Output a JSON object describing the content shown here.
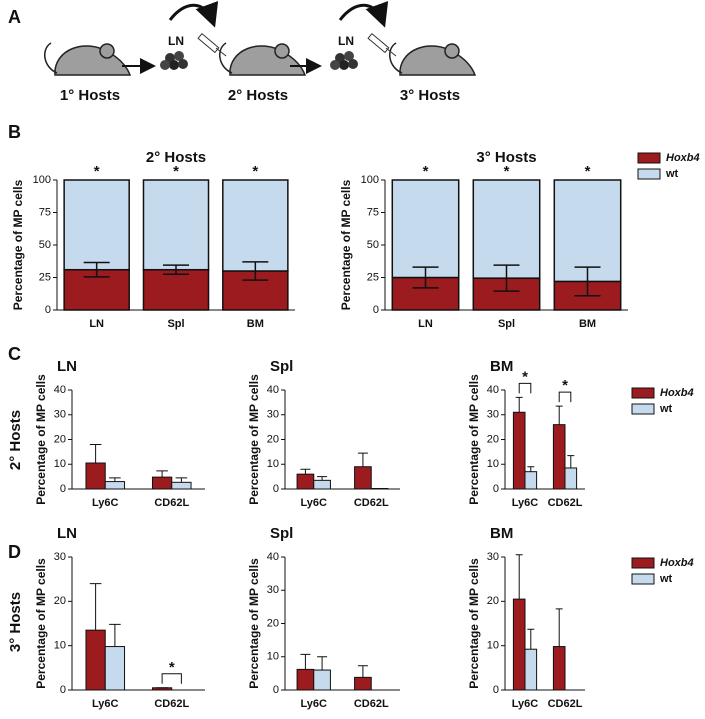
{
  "panel_labels": [
    "A",
    "B",
    "C",
    "D"
  ],
  "diagram": {
    "hosts": [
      "1° Hosts",
      "2° Hosts",
      "3° Hosts"
    ],
    "transfer_label": "LN"
  },
  "row_labels": [
    "2° Hosts",
    "3° Hosts"
  ],
  "chart_data": [
    {
      "type": "stacked_bar",
      "title": "2° Hosts",
      "ylabel": "Percentage of MP cells",
      "categories": [
        "LN",
        "Spl",
        "BM"
      ],
      "series": [
        {
          "name": "Hoxb4",
          "color": "#9b1b1e",
          "values": [
            31,
            31,
            30
          ],
          "errors": [
            5.5,
            3.5,
            7
          ]
        },
        {
          "name": "wt",
          "color": "#c6daee",
          "values": [
            69,
            69,
            70
          ]
        }
      ],
      "significance": [
        "*",
        "*",
        "*"
      ],
      "error_bars": "both",
      "ylim": [
        0,
        100
      ],
      "yticks": [
        0,
        25,
        50,
        75,
        100
      ]
    },
    {
      "type": "stacked_bar",
      "title": "3° Hosts",
      "ylabel": "Percentage of MP cells",
      "categories": [
        "LN",
        "Spl",
        "BM"
      ],
      "series": [
        {
          "name": "Hoxb4",
          "color": "#9b1b1e",
          "values": [
            25,
            24.5,
            22
          ],
          "errors": [
            8,
            10,
            11
          ]
        },
        {
          "name": "wt",
          "color": "#c6daee",
          "values": [
            75,
            75.5,
            78
          ]
        }
      ],
      "significance": [
        "*",
        "*",
        "*"
      ],
      "error_bars": "both",
      "ylim": [
        0,
        100
      ],
      "yticks": [
        0,
        25,
        50,
        75,
        100
      ]
    },
    {
      "type": "grouped_bar",
      "title": "LN",
      "ylabel": "Percentage of MP cells",
      "categories": [
        "Ly6C",
        "CD62L"
      ],
      "series": [
        {
          "name": "Hoxb4",
          "color": "#9b1b1e",
          "values": [
            10.5,
            4.8
          ],
          "errors": [
            7.5,
            2.5
          ]
        },
        {
          "name": "wt",
          "color": "#c6daee",
          "values": [
            3,
            2.7
          ],
          "errors": [
            1.5,
            1.8
          ]
        }
      ],
      "significance": [
        null,
        null
      ],
      "error_bars": "up",
      "ylim": [
        0,
        40
      ],
      "yticks": [
        0,
        10,
        20,
        30,
        40
      ]
    },
    {
      "type": "grouped_bar",
      "title": "Spl",
      "ylabel": "Percentage of MP cells",
      "categories": [
        "Ly6C",
        "CD62L"
      ],
      "series": [
        {
          "name": "Hoxb4",
          "color": "#9b1b1e",
          "values": [
            6,
            9
          ],
          "errors": [
            2,
            5.5
          ]
        },
        {
          "name": "wt",
          "color": "#c6daee",
          "values": [
            3.5,
            0.2
          ],
          "errors": [
            1.5,
            0
          ]
        }
      ],
      "significance": [
        null,
        null
      ],
      "error_bars": "up",
      "ylim": [
        0,
        40
      ],
      "yticks": [
        0,
        10,
        20,
        30,
        40
      ]
    },
    {
      "type": "grouped_bar",
      "title": "BM",
      "ylabel": "Percentage of MP cells",
      "categories": [
        "Ly6C",
        "CD62L"
      ],
      "series": [
        {
          "name": "Hoxb4",
          "color": "#9b1b1e",
          "values": [
            31,
            26
          ],
          "errors": [
            6,
            7.5
          ]
        },
        {
          "name": "wt",
          "color": "#c6daee",
          "values": [
            7,
            8.5
          ],
          "errors": [
            2,
            5
          ]
        }
      ],
      "significance": [
        "*",
        "*"
      ],
      "error_bars": "up",
      "ylim": [
        0,
        40
      ],
      "yticks": [
        0,
        10,
        20,
        30,
        40
      ]
    },
    {
      "type": "grouped_bar",
      "title": "LN",
      "ylabel": "Percentage of MP cells",
      "categories": [
        "Ly6C",
        "CD62L"
      ],
      "series": [
        {
          "name": "Hoxb4",
          "color": "#9b1b1e",
          "values": [
            13.5,
            0.5
          ],
          "errors": [
            10.5,
            0
          ]
        },
        {
          "name": "wt",
          "color": "#c6daee",
          "values": [
            9.8,
            0
          ],
          "errors": [
            5,
            0
          ]
        }
      ],
      "significance": [
        null,
        "*"
      ],
      "error_bars": "up",
      "ylim": [
        0,
        30
      ],
      "yticks": [
        0,
        10,
        20,
        30
      ]
    },
    {
      "type": "grouped_bar",
      "title": "Spl",
      "ylabel": "Percentage of MP cells",
      "categories": [
        "Ly6C",
        "CD62L"
      ],
      "series": [
        {
          "name": "Hoxb4",
          "color": "#9b1b1e",
          "values": [
            6.2,
            3.8
          ],
          "errors": [
            4.5,
            3.5
          ]
        },
        {
          "name": "wt",
          "color": "#c6daee",
          "values": [
            6,
            0
          ],
          "errors": [
            4,
            0
          ]
        }
      ],
      "significance": [
        null,
        null
      ],
      "error_bars": "up",
      "ylim": [
        0,
        40
      ],
      "yticks": [
        0,
        10,
        20,
        30,
        40
      ]
    },
    {
      "type": "grouped_bar",
      "title": "BM",
      "ylabel": "Percentage of MP cells",
      "categories": [
        "Ly6C",
        "CD62L"
      ],
      "series": [
        {
          "name": "Hoxb4",
          "color": "#9b1b1e",
          "values": [
            20.5,
            9.8
          ],
          "errors": [
            10,
            8.5
          ]
        },
        {
          "name": "wt",
          "color": "#c6daee",
          "values": [
            9.2,
            0
          ],
          "errors": [
            4.5,
            0
          ]
        }
      ],
      "significance": [
        null,
        null
      ],
      "error_bars": "up",
      "ylim": [
        0,
        30
      ],
      "yticks": [
        0,
        10,
        20,
        30
      ]
    }
  ]
}
